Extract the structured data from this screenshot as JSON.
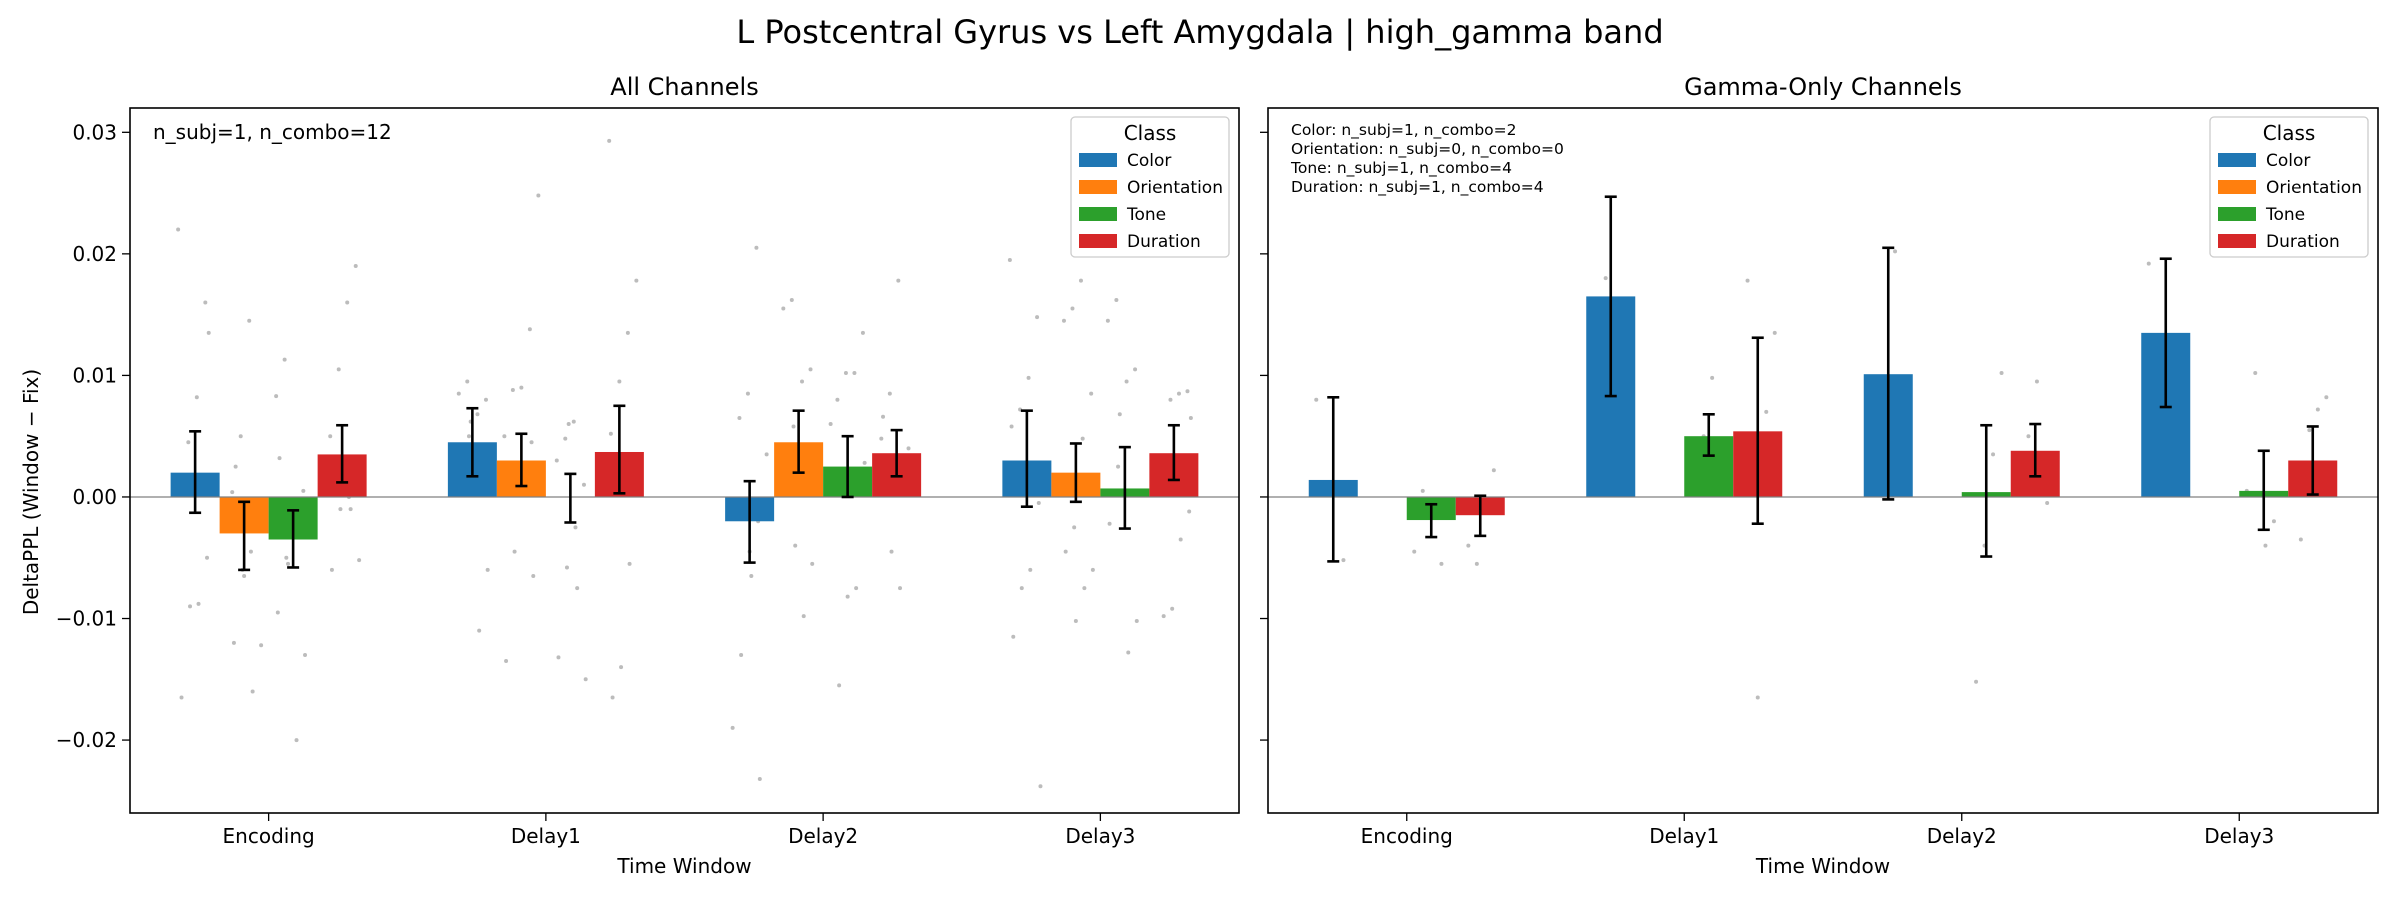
{
  "suptitle": "L Postcentral Gyrus vs Left Amygdala  |  high_gamma band",
  "colors": {
    "Color": "#1f77b4",
    "Orientation": "#ff7f0e",
    "Tone": "#2ca02c",
    "Duration": "#d62728",
    "scatter": "#b0b0b0",
    "zero_line": "#808080"
  },
  "ylabel": "DeltaPPL (Window − Fix)",
  "xlabel": "Time Window",
  "chart_data": [
    {
      "type": "bar",
      "title": "All Channels",
      "xlabel": "Time Window",
      "ylabel": "DeltaPPL (Window − Fix)",
      "ylim": [
        -0.026,
        0.032
      ],
      "yticks": [
        -0.02,
        -0.01,
        0.0,
        0.01,
        0.02,
        0.03
      ],
      "ytick_labels": [
        "−0.02",
        "−0.01",
        "0.00",
        "0.01",
        "0.02",
        "0.03"
      ],
      "categories": [
        "Encoding",
        "Delay1",
        "Delay2",
        "Delay3"
      ],
      "legend_title": "Class",
      "legend_position": "top-right",
      "annotation": "n_subj=1, n_combo=12",
      "series": [
        {
          "name": "Color",
          "values": [
            0.002,
            0.0045,
            -0.002,
            0.003
          ],
          "err_low": [
            -0.0013,
            0.0017,
            -0.0054,
            -0.0008
          ],
          "err_high": [
            0.0054,
            0.0073,
            0.0013,
            0.0071
          ]
        },
        {
          "name": "Orientation",
          "values": [
            -0.003,
            0.003,
            0.0045,
            0.002
          ],
          "err_low": [
            -0.006,
            0.0009,
            0.002,
            -0.0004
          ],
          "err_high": [
            -0.0004,
            0.0052,
            0.0071,
            0.0044
          ]
        },
        {
          "name": "Tone",
          "values": [
            -0.0035,
            0.0,
            0.0025,
            0.0007
          ],
          "err_low": [
            -0.0058,
            -0.0021,
            0.0,
            -0.0026
          ],
          "err_high": [
            -0.0011,
            0.0019,
            0.005,
            0.0041
          ]
        },
        {
          "name": "Duration",
          "values": [
            0.0035,
            0.0037,
            0.0036,
            0.0036
          ],
          "err_low": [
            0.0012,
            0.0003,
            0.0017,
            0.0014
          ],
          "err_high": [
            0.0059,
            0.0075,
            0.0055,
            0.0059
          ]
        }
      ],
      "points": [
        [
          [
            0.022,
            0.016,
            0.0082,
            0.0045,
            0.001,
            -0.005,
            -0.0088,
            -0.009,
            -0.0165,
            0.0135,
            0.0012
          ],
          [
            0.0145,
            0.005,
            0.0004,
            -0.002,
            -0.0045,
            -0.006,
            -0.012,
            -0.0122,
            -0.016,
            -0.0065,
            0.0025
          ],
          [
            0.0113,
            0.0083,
            0.0005,
            -0.001,
            -0.005,
            -0.0095,
            -0.013,
            -0.02,
            -0.0055,
            0.0032
          ],
          [
            0.019,
            0.016,
            0.0105,
            0.005,
            0.003,
            0.0,
            -0.001,
            -0.006,
            -0.0052,
            -0.001
          ]
        ],
        [
          [
            0.0095,
            0.0085,
            0.008,
            0.0068,
            0.005,
            0.003,
            -0.006,
            -0.011,
            0.0062
          ],
          [
            0.0248,
            0.0138,
            0.009,
            0.0088,
            0.005,
            0.0045,
            0.001,
            -0.0045,
            -0.0135,
            -0.0065
          ],
          [
            0.0062,
            0.0048,
            0.003,
            0.001,
            -0.0025,
            -0.0058,
            -0.0132,
            -0.015,
            -0.0075,
            0.006
          ],
          [
            0.0293,
            0.0178,
            0.0135,
            0.0095,
            0.0052,
            0.0035,
            -0.0055,
            -0.014,
            -0.0165,
            0.0008
          ]
        ],
        [
          [
            0.0205,
            0.0085,
            0.0065,
            0.0035,
            -0.002,
            -0.0045,
            -0.013,
            -0.019,
            -0.0232,
            -0.0065
          ],
          [
            0.0162,
            0.0155,
            0.0105,
            0.0095,
            0.0058,
            0.0028,
            -0.0055,
            -0.0098,
            -0.004
          ],
          [
            0.0135,
            0.0102,
            0.0102,
            0.008,
            0.0028,
            -0.0075,
            -0.0082,
            -0.0155,
            0.006
          ],
          [
            0.0178,
            0.0085,
            0.0048,
            0.004,
            -0.0075,
            -0.0045,
            0.0066
          ]
        ],
        [
          [
            0.0195,
            0.0148,
            0.0098,
            0.0072,
            0.0058,
            -0.0005,
            -0.006,
            -0.0075,
            -0.0115,
            -0.0238
          ],
          [
            0.0178,
            0.0155,
            0.0145,
            0.0085,
            0.0048,
            -0.0025,
            -0.0045,
            -0.006,
            -0.0075,
            -0.0102
          ],
          [
            0.0162,
            0.0145,
            0.0105,
            0.0095,
            0.0025,
            -0.0022,
            -0.0102,
            -0.0128,
            0.0068
          ],
          [
            0.0087,
            0.0085,
            0.008,
            0.0025,
            -0.0012,
            -0.0035,
            -0.0092,
            -0.0098,
            0.0065
          ]
        ]
      ]
    },
    {
      "type": "bar",
      "title": "Gamma-Only Channels",
      "xlabel": "Time Window",
      "ylim": [
        -0.026,
        0.032
      ],
      "categories": [
        "Encoding",
        "Delay1",
        "Delay2",
        "Delay3"
      ],
      "legend_title": "Class",
      "legend_position": "top-right",
      "annotation_lines": [
        "Color: n_subj=1, n_combo=2",
        "Orientation: n_subj=0, n_combo=0",
        "Tone: n_subj=1, n_combo=4",
        "Duration: n_subj=1, n_combo=4"
      ],
      "series": [
        {
          "name": "Color",
          "values": [
            0.0014,
            0.0165,
            0.0101,
            0.0135
          ],
          "err_low": [
            -0.0053,
            0.0083,
            -0.0002,
            0.0074
          ],
          "err_high": [
            0.0082,
            0.0247,
            0.0205,
            0.0196
          ]
        },
        {
          "name": "Orientation",
          "values": [
            null,
            null,
            null,
            null
          ],
          "err_low": [
            null,
            null,
            null,
            null
          ],
          "err_high": [
            null,
            null,
            null,
            null
          ]
        },
        {
          "name": "Tone",
          "values": [
            -0.0019,
            0.005,
            0.0004,
            0.0005
          ],
          "err_low": [
            -0.0033,
            0.0034,
            -0.0049,
            -0.0027
          ],
          "err_high": [
            -0.0006,
            0.0068,
            0.0059,
            0.0038
          ]
        },
        {
          "name": "Duration",
          "values": [
            -0.0015,
            0.0054,
            0.0038,
            0.003
          ],
          "err_low": [
            -0.0032,
            -0.0022,
            0.0017,
            0.0002
          ],
          "err_high": [
            0.0001,
            0.0131,
            0.006,
            0.0058
          ]
        }
      ],
      "points": [
        [
          [
            0.008,
            -0.0052
          ],
          [],
          [
            0.0005,
            -0.0045,
            -0.0055,
            -0.0015
          ],
          [
            0.0022,
            -0.001,
            -0.0055,
            -0.004
          ]
        ],
        [
          [
            0.018,
            0.012
          ],
          [],
          [
            0.0098,
            0.005,
            0.003,
            0.0008
          ],
          [
            0.0178,
            0.0135,
            0.007,
            -0.0165
          ]
        ],
        [
          [
            0.0202,
            0.0004
          ],
          [],
          [
            0.0102,
            0.0035,
            -0.004,
            -0.0152
          ],
          [
            0.0095,
            0.005,
            0.0025,
            -0.0005
          ]
        ],
        [
          [
            0.0192,
            0.0078
          ],
          [],
          [
            0.0102,
            0.0005,
            -0.002,
            -0.004
          ],
          [
            0.0082,
            0.0072,
            0.0055,
            -0.0035
          ]
        ]
      ]
    }
  ]
}
